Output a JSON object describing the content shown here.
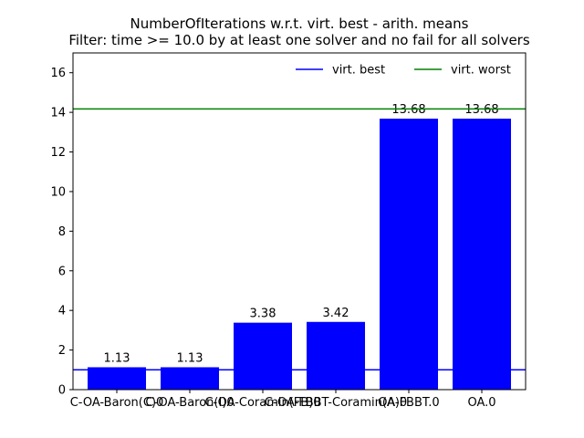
{
  "chart_data": {
    "type": "bar",
    "title": "NumberOfIterations w.r.t. virt. best - arith. means",
    "subtitle": "Filter: time >= 10.0 by at least one solver and no fail for all solvers",
    "xlabel": "",
    "ylabel": "",
    "categories": [
      "C-OA-Baron(C)0",
      "C-OA-Baron(I)0",
      "C-OA-Coramin(FB)0",
      "C-OA-FBBT-Coramin(A)0",
      "OA-FBBT.0",
      "OA.0"
    ],
    "values": [
      1.13,
      1.13,
      3.38,
      3.42,
      13.68,
      13.68
    ],
    "value_labels": [
      "1.13",
      "1.13",
      "3.38",
      "3.42",
      "13.68",
      "13.68"
    ],
    "ylim": [
      0,
      17
    ],
    "yticks": [
      0,
      2,
      4,
      6,
      8,
      10,
      12,
      14,
      16
    ],
    "bar_color": "#0000ff",
    "grid": false,
    "legend_position": "top-right",
    "reference_lines": [
      {
        "name": "virt. best",
        "value": 1.0,
        "color": "#0000ff"
      },
      {
        "name": "virt. worst",
        "value": 14.17,
        "color": "#008000"
      }
    ]
  }
}
